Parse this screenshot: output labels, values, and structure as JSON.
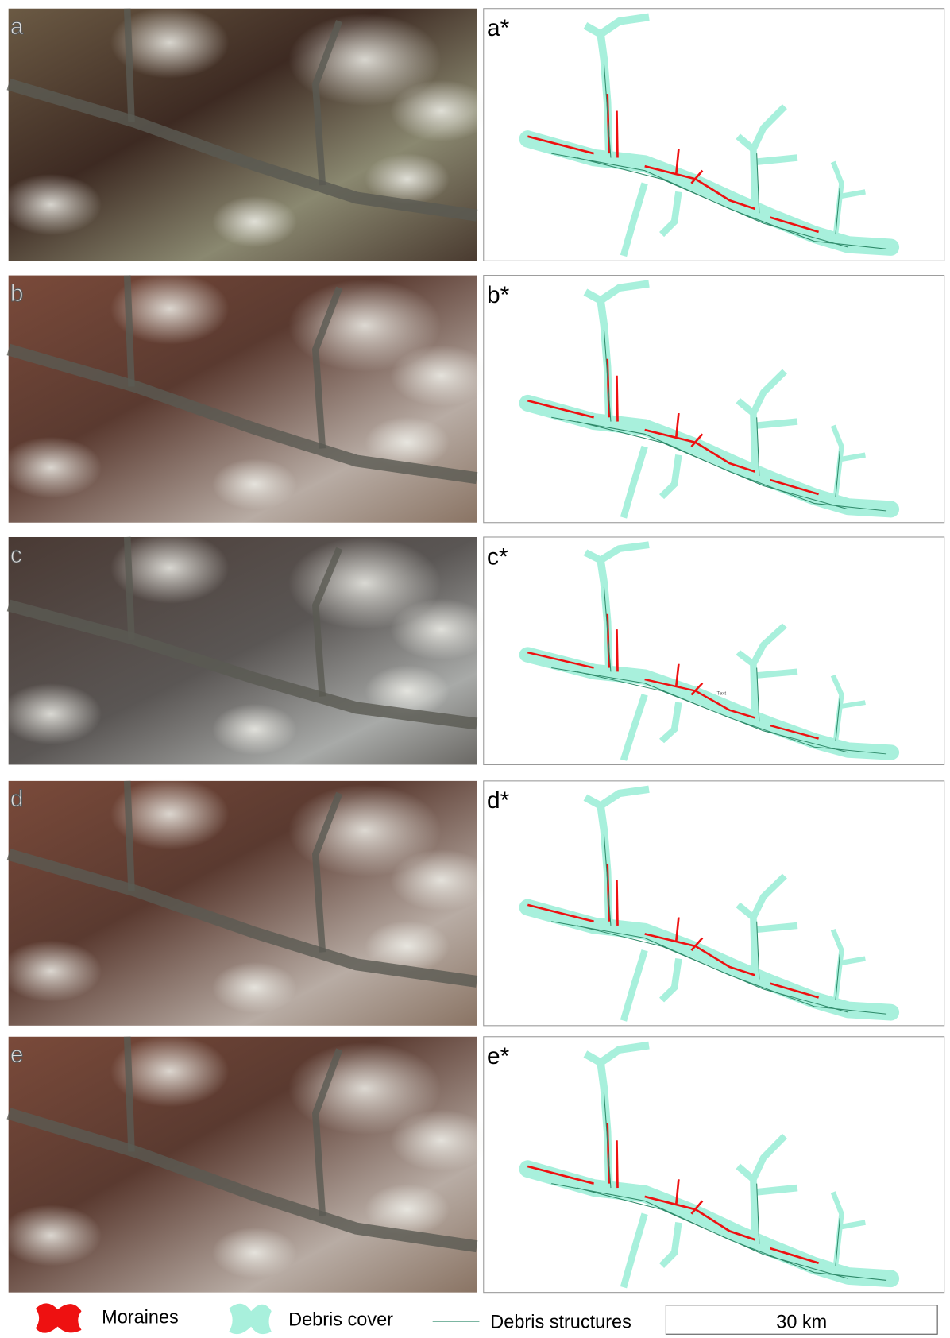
{
  "panels": [
    {
      "label": "a",
      "map_label": "a*"
    },
    {
      "label": "b",
      "map_label": "b*"
    },
    {
      "label": "c",
      "map_label": "c*"
    },
    {
      "label": "d",
      "map_label": "d*"
    },
    {
      "label": "e",
      "map_label": "e*"
    }
  ],
  "annotation": "Text",
  "legend": {
    "items": [
      "Moraines",
      "Debris cover",
      "Debris structures"
    ],
    "scale_bar": "30 km"
  }
}
